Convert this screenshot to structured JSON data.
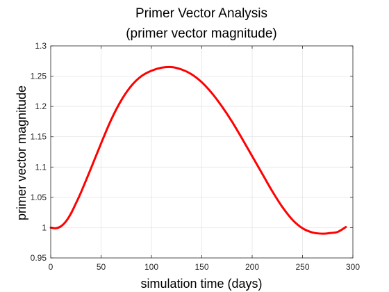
{
  "chart_data": {
    "type": "line",
    "title": "Primer Vector Analysis",
    "subtitle": "(primer vector magnitude)",
    "xlabel": "simulation time (days)",
    "ylabel": "primer vector magnitude",
    "xlim": [
      0,
      300
    ],
    "ylim": [
      0.95,
      1.3
    ],
    "xticks": [
      0,
      50,
      100,
      150,
      200,
      250,
      300
    ],
    "xtick_labels": [
      "0",
      "50",
      "100",
      "150",
      "200",
      "250",
      "300"
    ],
    "yticks": [
      0.95,
      1.0,
      1.05,
      1.1,
      1.15,
      1.2,
      1.25,
      1.3
    ],
    "ytick_labels": [
      "0.95",
      "1",
      "1.05",
      "1.1",
      "1.15",
      "1.2",
      "1.25",
      "1.3"
    ],
    "grid": true,
    "series": [
      {
        "color": "#ff0000",
        "x": [
          0,
          5,
          10,
          15,
          20,
          25,
          30,
          40,
          50,
          60,
          70,
          80,
          90,
          100,
          110,
          120,
          130,
          140,
          150,
          160,
          170,
          180,
          190,
          200,
          210,
          220,
          230,
          240,
          250,
          260,
          270,
          277,
          285,
          293
        ],
        "y": [
          1.0,
          0.999,
          1.002,
          1.01,
          1.023,
          1.04,
          1.058,
          1.098,
          1.139,
          1.178,
          1.21,
          1.234,
          1.25,
          1.259,
          1.264,
          1.265,
          1.261,
          1.253,
          1.24,
          1.222,
          1.2,
          1.175,
          1.147,
          1.118,
          1.089,
          1.06,
          1.034,
          1.013,
          0.999,
          0.992,
          0.99,
          0.991,
          0.993,
          1.001
        ]
      }
    ]
  }
}
